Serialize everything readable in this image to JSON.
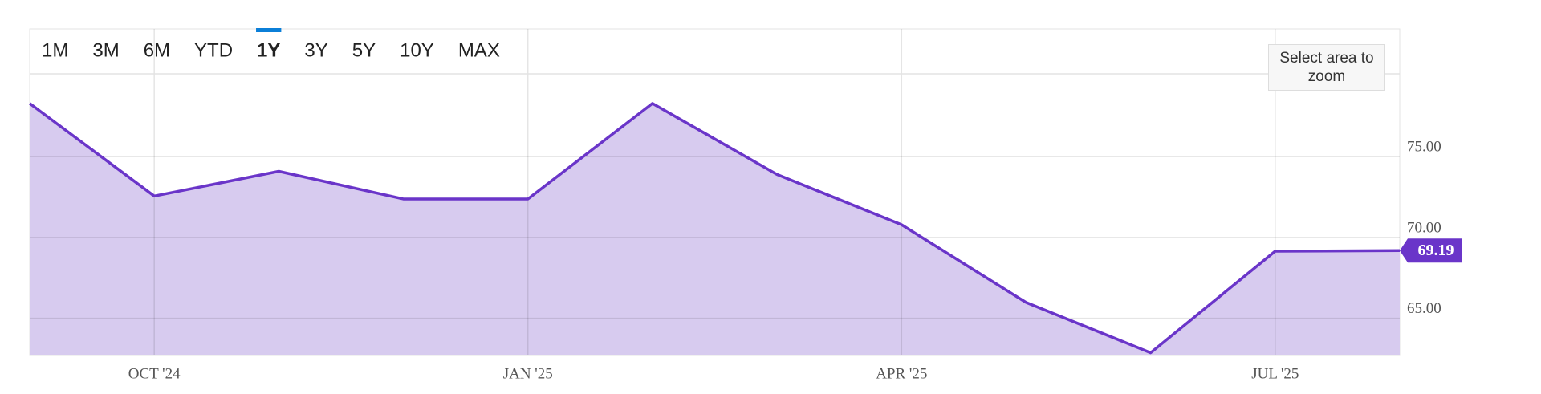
{
  "controls": {
    "ranges": [
      "1M",
      "3M",
      "6M",
      "YTD",
      "1Y",
      "3Y",
      "5Y",
      "10Y",
      "MAX"
    ],
    "active": "1Y",
    "disabled": [
      "10Y",
      "MAX"
    ],
    "zoom_hint": "Select area to zoom"
  },
  "chart_data": {
    "type": "area",
    "x": [
      "2024-09",
      "2024-10",
      "2024-11",
      "2024-12",
      "2025-01",
      "2025-02",
      "2025-03",
      "2025-04",
      "2025-05",
      "2025-06",
      "2025-07",
      "2025-08"
    ],
    "values": [
      78.29,
      72.56,
      74.09,
      72.38,
      72.38,
      78.29,
      73.9,
      70.79,
      65.98,
      62.87,
      69.15,
      69.19
    ],
    "value_labels": [
      null,
      null,
      null,
      null,
      null,
      null,
      null,
      null,
      null,
      null,
      null,
      "69.19"
    ],
    "color": "#6a35c9",
    "fill": "#d7cbef",
    "xlim": [
      "2024-09",
      "2025-08"
    ],
    "xticks": [
      {
        "value": "2024-10",
        "label": "OCT '24"
      },
      {
        "value": "2025-01",
        "label": "JAN '25"
      },
      {
        "value": "2025-04",
        "label": "APR '25"
      },
      {
        "value": "2025-07",
        "label": "JUL '25"
      }
    ],
    "ylim": [
      62.7,
      82.9
    ],
    "yticks": [
      {
        "value": 65,
        "label": "65.00"
      },
      {
        "value": 70,
        "label": "70.00"
      },
      {
        "value": 75,
        "label": "75.00"
      }
    ],
    "grid": true
  }
}
